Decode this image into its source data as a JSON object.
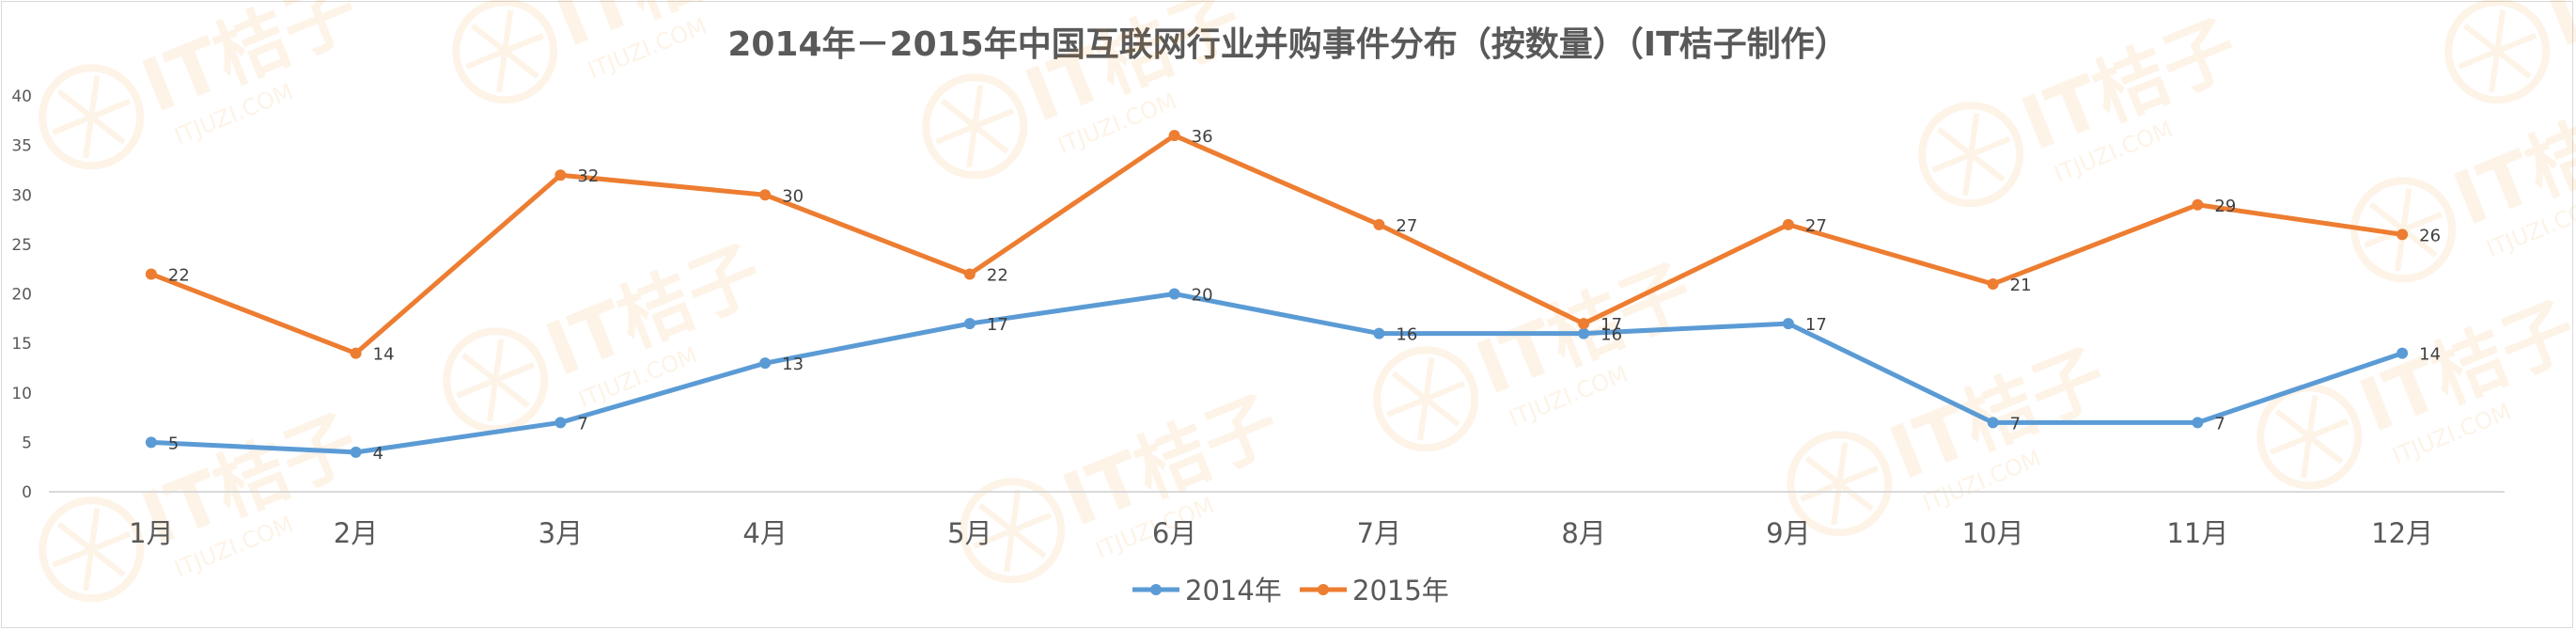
{
  "chart_data": {
    "type": "line",
    "title": "2014年－2015年中国互联网行业并购事件分布（按数量）（IT桔子制作）",
    "categories": [
      "1月",
      "2月",
      "3月",
      "4月",
      "5月",
      "6月",
      "7月",
      "8月",
      "9月",
      "10月",
      "11月",
      "12月"
    ],
    "series": [
      {
        "name": "2014年",
        "color": "#5b9bd5",
        "values": [
          5,
          4,
          7,
          13,
          17,
          20,
          16,
          16,
          17,
          7,
          7,
          14
        ]
      },
      {
        "name": "2015年",
        "color": "#ed7d31",
        "values": [
          22,
          14,
          32,
          30,
          22,
          36,
          27,
          17,
          27,
          21,
          29,
          26
        ]
      }
    ],
    "ylim": [
      0,
      40
    ],
    "yticks": [
      0,
      5,
      10,
      15,
      20,
      25,
      30,
      35,
      40
    ],
    "grid": false,
    "legend": "bottom",
    "watermark": {
      "icon": "orange-slice-logo",
      "brand": "IT桔子",
      "url": "ITJUZI.COM"
    }
  }
}
